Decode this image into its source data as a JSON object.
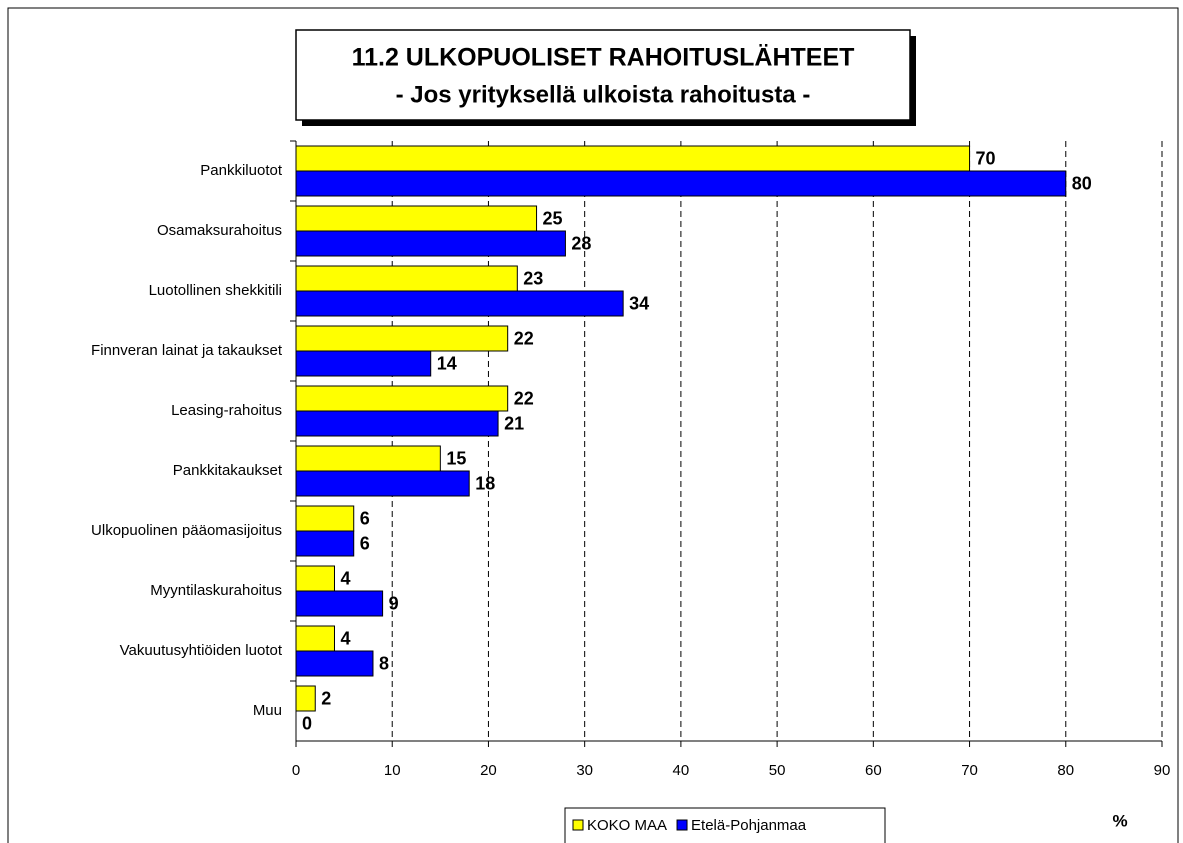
{
  "chart_data": {
    "type": "bar",
    "orientation": "horizontal",
    "title": "11.2 ULKOPUOLISET RAHOITUSLÄHTEET",
    "subtitle": "- Jos yrityksellä ulkoista rahoitusta -",
    "x_label": "%",
    "categories": [
      "Pankkiluotot",
      "Osamaksurahoitus",
      "Luotollinen shekkitili",
      "Finnveran lainat ja takaukset",
      "Leasing-rahoitus",
      "Pankkitakaukset",
      "Ulkopuolinen pääomasijoitus",
      "Myyntilaskurahoitus",
      "Vakuutusyhtiöiden luotot",
      "Muu"
    ],
    "series": [
      {
        "name": "KOKO MAA",
        "color": "#ffff00",
        "values": [
          70,
          25,
          23,
          22,
          22,
          15,
          6,
          4,
          4,
          2
        ]
      },
      {
        "name": "Etelä-Pohjanmaa",
        "color": "#0000ff",
        "values": [
          80,
          28,
          34,
          14,
          21,
          18,
          6,
          9,
          8,
          0
        ]
      }
    ],
    "xlim": [
      0,
      90
    ],
    "xticks": [
      0,
      10,
      20,
      30,
      40,
      50,
      60,
      70,
      80,
      90
    ],
    "grid": true,
    "legend": "bottom"
  }
}
